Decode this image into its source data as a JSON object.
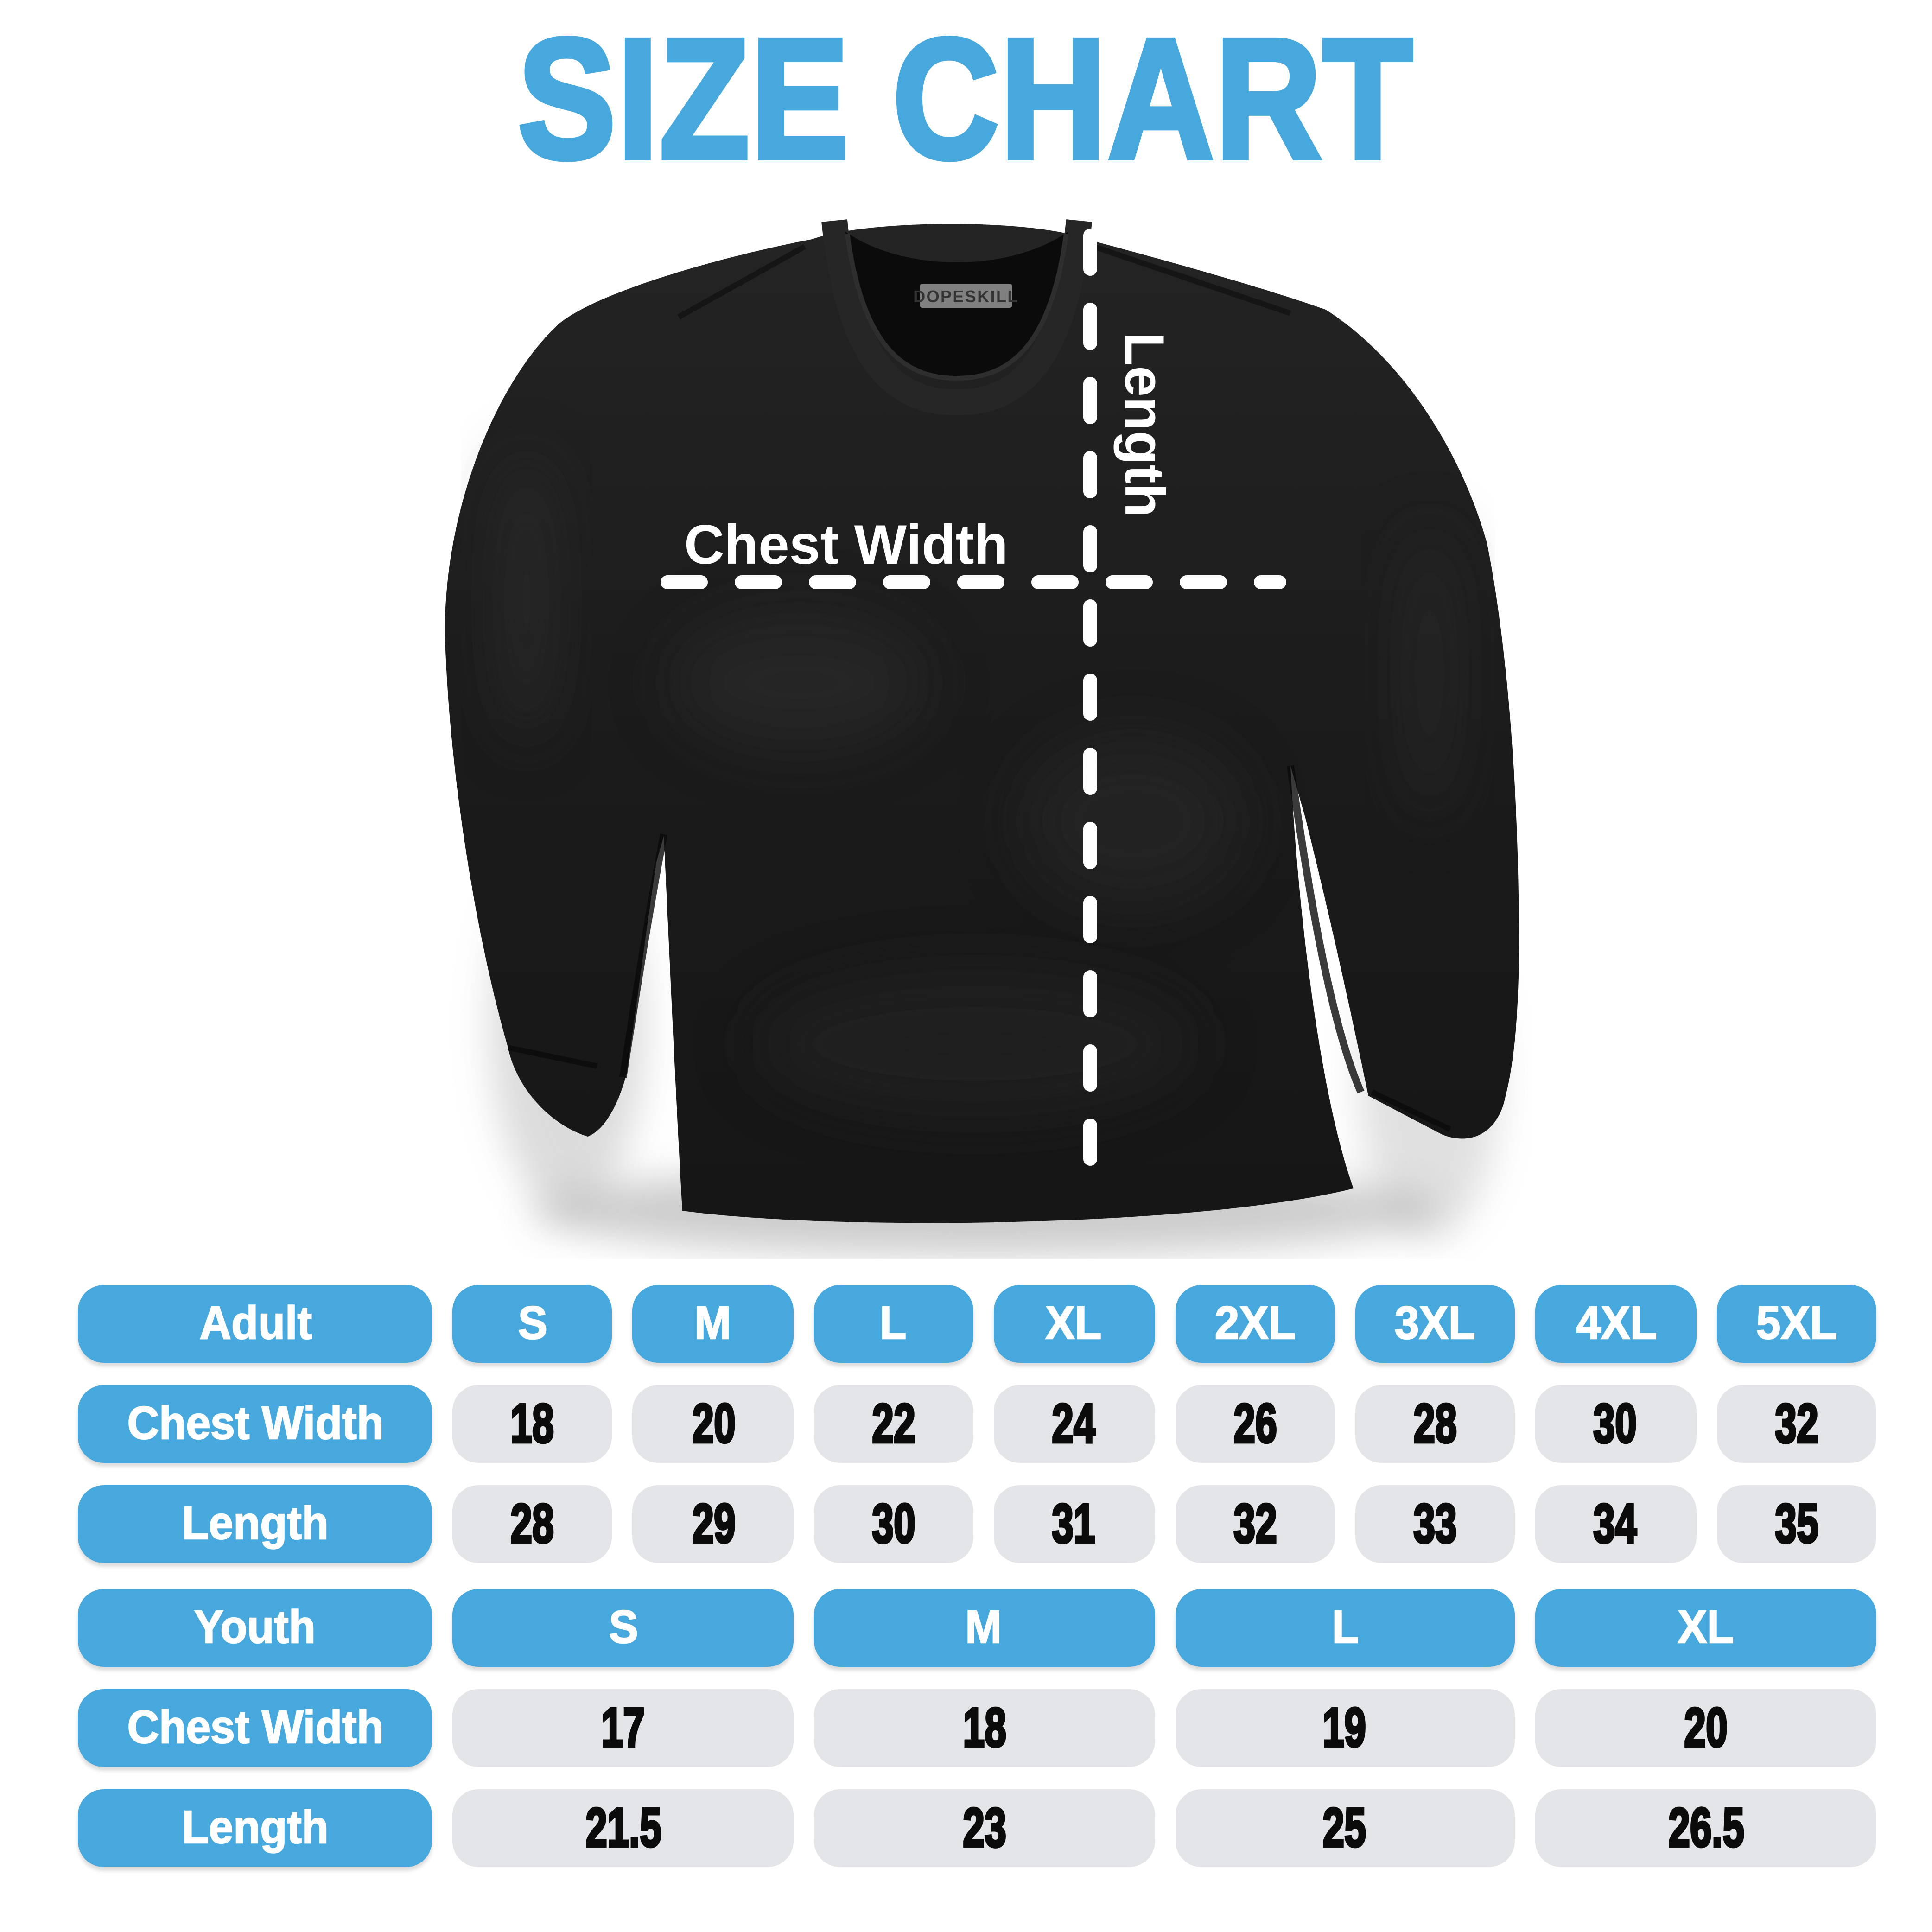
{
  "title": "SIZE CHART",
  "colors": {
    "accent_blue": "#47A8DD",
    "pill_gray": "#E4E5E8",
    "shirt_black": "#1c1c1c",
    "number_text": "#0b0b0b",
    "white": "#ffffff"
  },
  "shirt": {
    "brand_tag": "DOPESKILL",
    "length_label": "Length",
    "chest_width_label": "Chest Width"
  },
  "adult_table": {
    "category_label": "Adult",
    "sizes": [
      "S",
      "M",
      "L",
      "XL",
      "2XL",
      "3XL",
      "4XL",
      "5XL"
    ],
    "rows": [
      {
        "label": "Chest Width",
        "values": [
          "18",
          "20",
          "22",
          "24",
          "26",
          "28",
          "30",
          "32"
        ]
      },
      {
        "label": "Length",
        "values": [
          "28",
          "29",
          "30",
          "31",
          "32",
          "33",
          "34",
          "35"
        ]
      }
    ]
  },
  "youth_table": {
    "category_label": "Youth",
    "sizes": [
      "S",
      "M",
      "L",
      "XL"
    ],
    "rows": [
      {
        "label": "Chest Width",
        "values": [
          "17",
          "18",
          "19",
          "20"
        ]
      },
      {
        "label": "Length",
        "values": [
          "21.5",
          "23",
          "25",
          "26.5"
        ]
      }
    ]
  }
}
